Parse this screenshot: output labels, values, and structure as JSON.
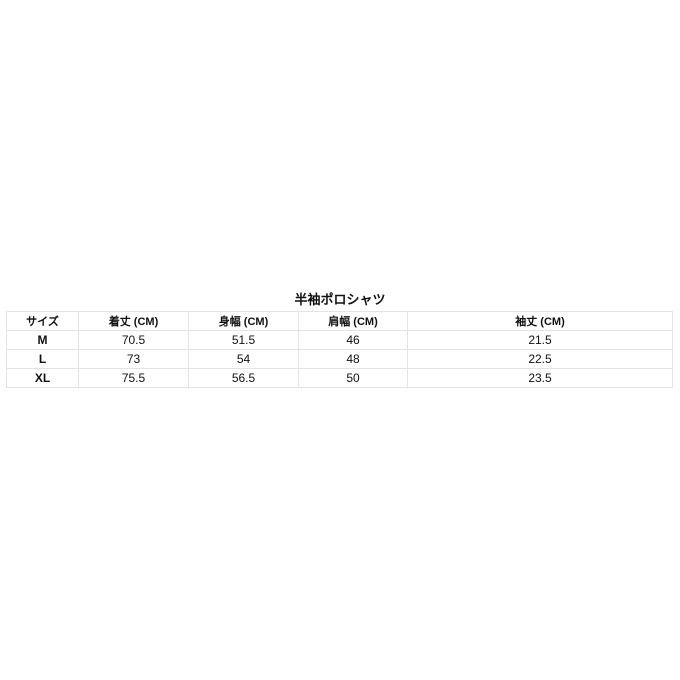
{
  "title": "半袖ポロシャツ",
  "headers": [
    "サイズ",
    "着丈 (CM)",
    "身幅 (CM)",
    "肩幅 (CM)",
    "袖丈 (CM)"
  ],
  "rows": [
    [
      "M",
      "70.5",
      "51.5",
      "46",
      "21.5"
    ],
    [
      "L",
      "73",
      "54",
      "48",
      "22.5"
    ],
    [
      "XL",
      "75.5",
      "56.5",
      "50",
      "23.5"
    ]
  ]
}
